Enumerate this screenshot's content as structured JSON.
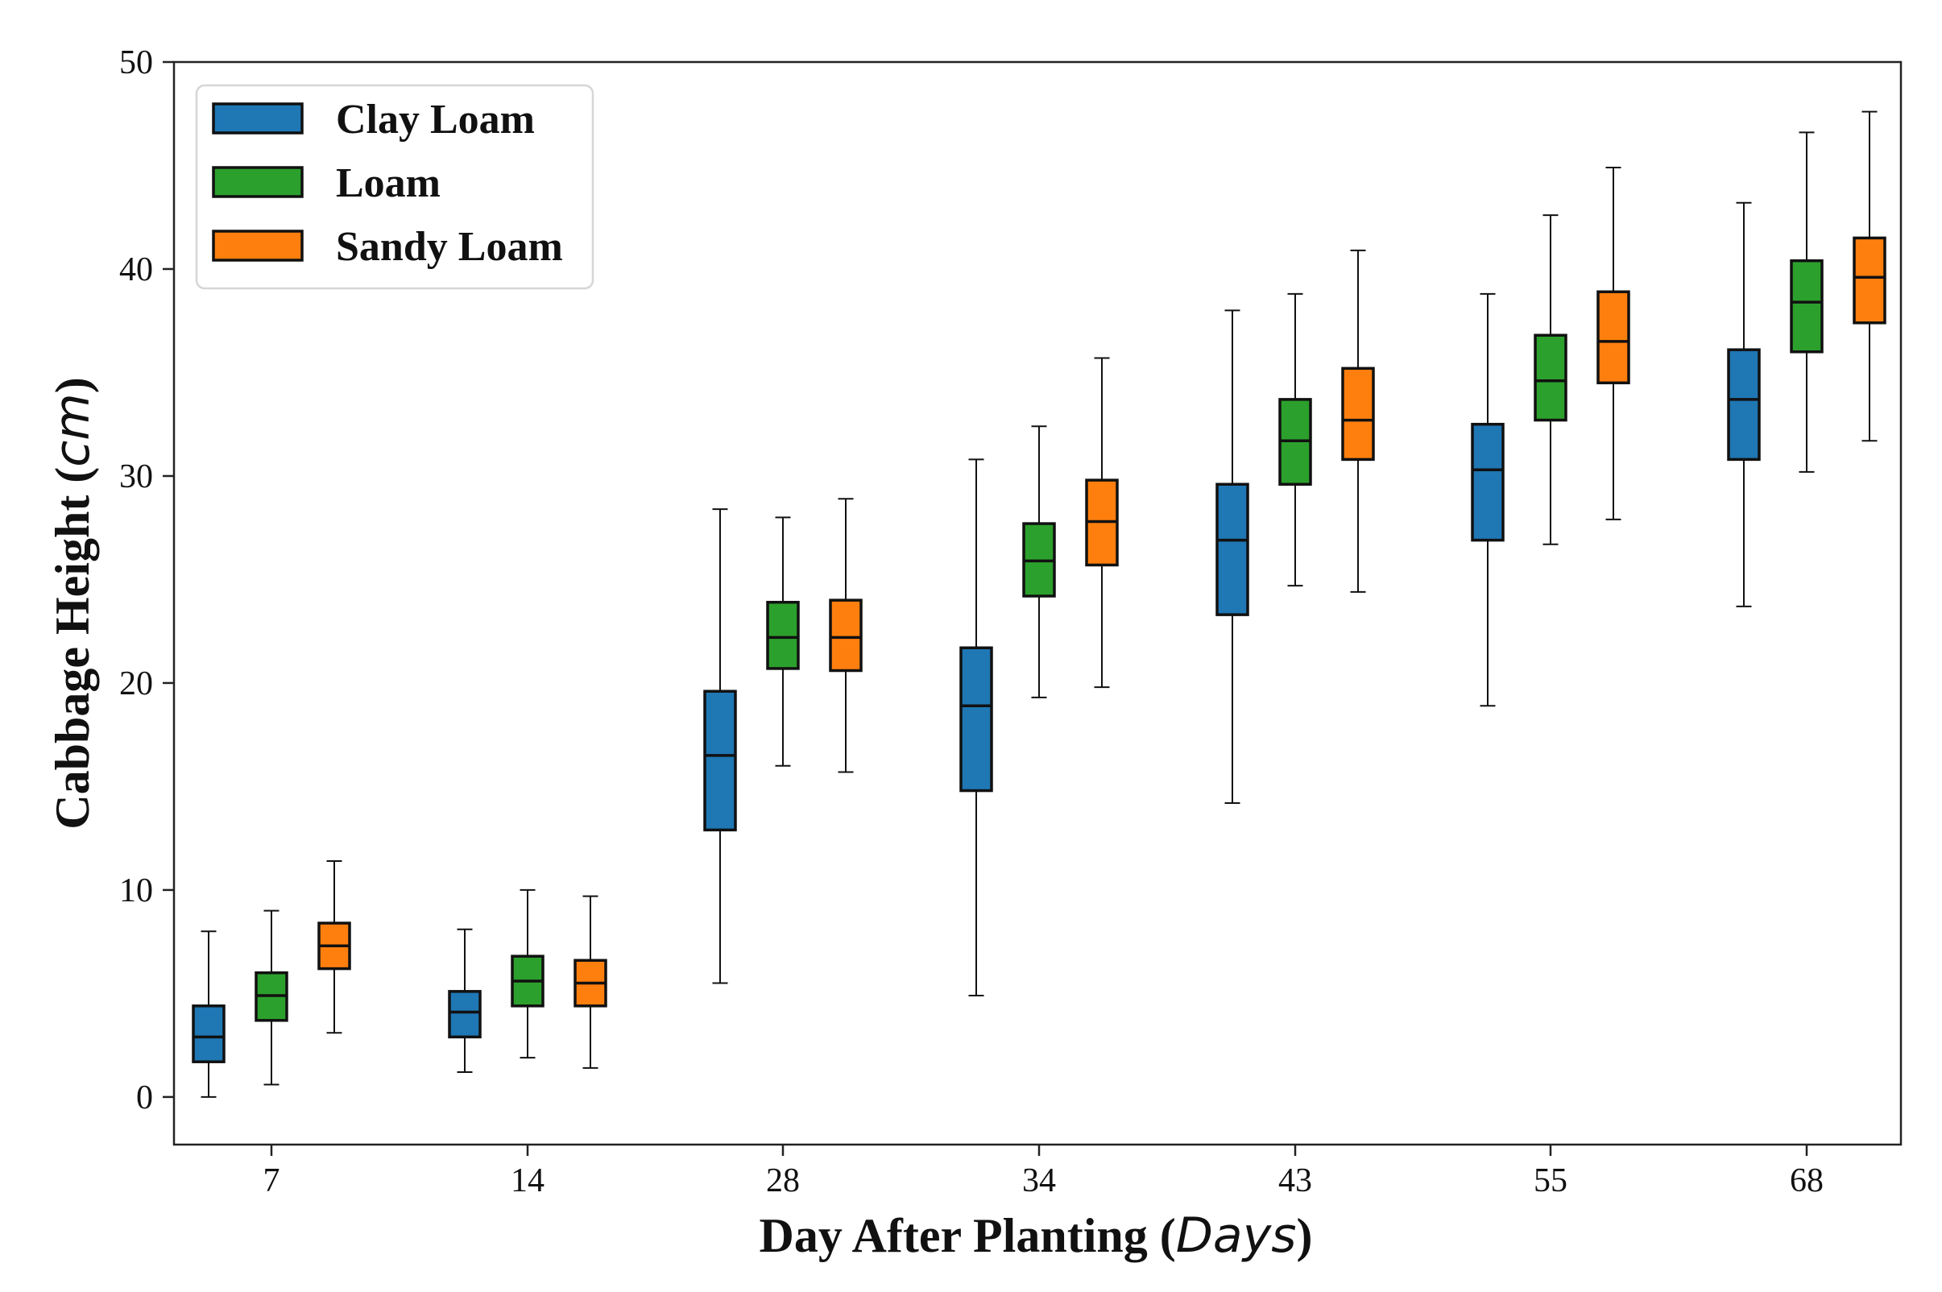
{
  "chart_data": {
    "type": "boxplot",
    "title": "",
    "xlabel": {
      "text": "Day After Planting",
      "unit": "Days"
    },
    "ylabel": {
      "text": "Cabbage Height",
      "unit": "cm"
    },
    "ylim": [
      -2.3,
      50
    ],
    "yticks": [
      0,
      10,
      20,
      30,
      40,
      50
    ],
    "categories": [
      "7",
      "14",
      "28",
      "34",
      "43",
      "55",
      "68"
    ],
    "grid": false,
    "legend_position": "top-left",
    "series": [
      {
        "name": "Clay Loam",
        "color": "#1f77b4",
        "boxes": [
          {
            "whislo": 0.0,
            "q1": 1.7,
            "med": 2.9,
            "q3": 4.4,
            "whishi": 8.0
          },
          {
            "whislo": 1.2,
            "q1": 2.9,
            "med": 4.1,
            "q3": 5.1,
            "whishi": 8.1
          },
          {
            "whislo": 5.5,
            "q1": 12.9,
            "med": 16.5,
            "q3": 19.6,
            "whishi": 28.4
          },
          {
            "whislo": 4.9,
            "q1": 14.8,
            "med": 18.9,
            "q3": 21.7,
            "whishi": 30.8
          },
          {
            "whislo": 14.2,
            "q1": 23.3,
            "med": 26.9,
            "q3": 29.6,
            "whishi": 38.0
          },
          {
            "whislo": 18.9,
            "q1": 26.9,
            "med": 30.3,
            "q3": 32.5,
            "whishi": 38.8
          },
          {
            "whislo": 23.7,
            "q1": 30.8,
            "med": 33.7,
            "q3": 36.1,
            "whishi": 43.2
          }
        ]
      },
      {
        "name": "Loam",
        "color": "#2ca02c",
        "boxes": [
          {
            "whislo": 0.6,
            "q1": 3.7,
            "med": 4.9,
            "q3": 6.0,
            "whishi": 9.0
          },
          {
            "whislo": 1.9,
            "q1": 4.4,
            "med": 5.6,
            "q3": 6.8,
            "whishi": 10.0
          },
          {
            "whislo": 16.0,
            "q1": 20.7,
            "med": 22.2,
            "q3": 23.9,
            "whishi": 28.0
          },
          {
            "whislo": 19.3,
            "q1": 24.2,
            "med": 25.9,
            "q3": 27.7,
            "whishi": 32.4
          },
          {
            "whislo": 24.7,
            "q1": 29.6,
            "med": 31.7,
            "q3": 33.7,
            "whishi": 38.8
          },
          {
            "whislo": 26.7,
            "q1": 32.7,
            "med": 34.6,
            "q3": 36.8,
            "whishi": 42.6
          },
          {
            "whislo": 30.2,
            "q1": 36.0,
            "med": 38.4,
            "q3": 40.4,
            "whishi": 46.6
          }
        ]
      },
      {
        "name": "Sandy Loam",
        "color": "#ff7f0e",
        "boxes": [
          {
            "whislo": 3.1,
            "q1": 6.2,
            "med": 7.3,
            "q3": 8.4,
            "whishi": 11.4
          },
          {
            "whislo": 1.4,
            "q1": 4.4,
            "med": 5.5,
            "q3": 6.6,
            "whishi": 9.7
          },
          {
            "whislo": 15.7,
            "q1": 20.6,
            "med": 22.2,
            "q3": 24.0,
            "whishi": 28.9
          },
          {
            "whislo": 19.8,
            "q1": 25.7,
            "med": 27.8,
            "q3": 29.8,
            "whishi": 35.7
          },
          {
            "whislo": 24.4,
            "q1": 30.8,
            "med": 32.7,
            "q3": 35.2,
            "whishi": 40.9
          },
          {
            "whislo": 27.9,
            "q1": 34.5,
            "med": 36.5,
            "q3": 38.9,
            "whishi": 44.9
          },
          {
            "whislo": 31.7,
            "q1": 37.4,
            "med": 39.6,
            "q3": 41.5,
            "whishi": 47.6
          }
        ]
      }
    ]
  }
}
